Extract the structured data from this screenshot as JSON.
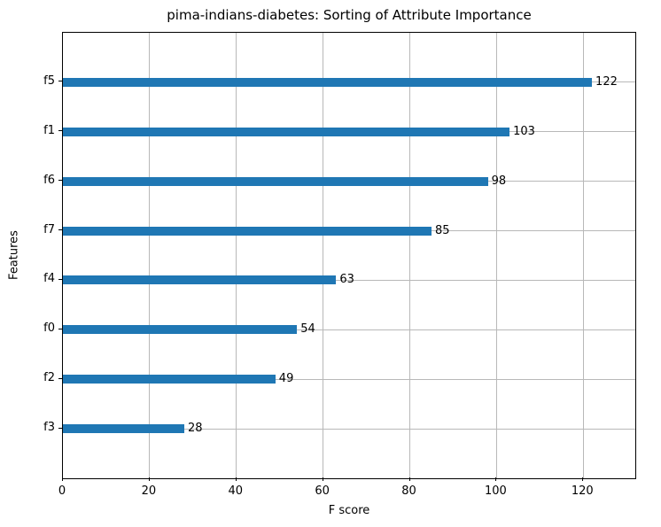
{
  "chart_data": {
    "type": "bar",
    "orientation": "horizontal",
    "title": "pima-indians-diabetes: Sorting of Attribute Importance",
    "xlabel": "F score",
    "ylabel": "Features",
    "categories": [
      "f5",
      "f1",
      "f6",
      "f7",
      "f4",
      "f0",
      "f2",
      "f3"
    ],
    "values": [
      122,
      103,
      98,
      85,
      63,
      54,
      49,
      28
    ],
    "xlim": [
      0,
      132
    ],
    "xticks": [
      0,
      20,
      40,
      60,
      80,
      100,
      120
    ],
    "bar_color": "#1f77b4",
    "grid": true,
    "grid_color": "#b8b8b8",
    "value_labels": true,
    "legend": "none"
  }
}
